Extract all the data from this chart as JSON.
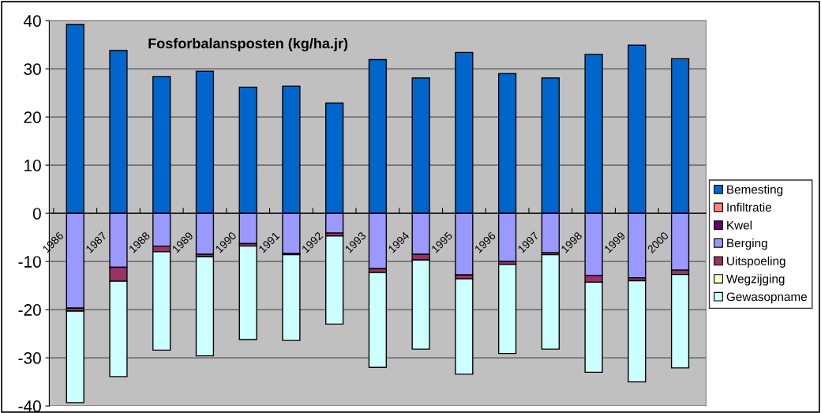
{
  "chart_data": {
    "type": "bar",
    "title": "Fosforbalansposten (kg/ha.jr)",
    "categories": [
      "1986",
      "1987",
      "1988",
      "1989",
      "1990",
      "1991",
      "1992",
      "1993",
      "1994",
      "1995",
      "1996",
      "1997",
      "1998",
      "1999",
      "2000"
    ],
    "stacked": true,
    "series": [
      {
        "name": "Bemesting",
        "color": "#0066cc",
        "values": [
          39.2,
          33.8,
          28.4,
          29.5,
          26.2,
          26.4,
          22.9,
          31.9,
          28.1,
          33.4,
          29.0,
          28.1,
          33.0,
          34.9,
          32.1
        ]
      },
      {
        "name": "Infiltratie",
        "color": "#ff8080",
        "values": [
          null,
          null,
          null,
          null,
          null,
          null,
          null,
          null,
          null,
          null,
          null,
          null,
          null,
          null,
          null
        ]
      },
      {
        "name": "Kwel",
        "color": "#660066",
        "values": [
          null,
          null,
          null,
          null,
          null,
          null,
          null,
          null,
          null,
          null,
          null,
          null,
          null,
          null,
          null
        ]
      },
      {
        "name": "Berging",
        "color": "#9999ff",
        "values": [
          -19.7,
          -11.2,
          -6.8,
          -8.5,
          -6.3,
          -8.3,
          -4.1,
          -11.5,
          -8.5,
          -12.8,
          -10.0,
          -8.2,
          -12.9,
          -13.4,
          -11.8
        ]
      },
      {
        "name": "Uitspoeling",
        "color": "#993366",
        "values": [
          -0.6,
          -2.9,
          -1.2,
          -0.5,
          -0.5,
          -0.3,
          -0.6,
          -0.8,
          -1.2,
          -0.8,
          -0.6,
          -0.4,
          -1.4,
          -0.6,
          -0.9
        ]
      },
      {
        "name": "Wegzijging",
        "color": "#ffffcc",
        "values": [
          null,
          null,
          null,
          null,
          null,
          null,
          null,
          null,
          null,
          null,
          null,
          null,
          null,
          null,
          null
        ]
      },
      {
        "name": "Gewasopname",
        "color": "#ccffff",
        "values": [
          -19.0,
          -19.8,
          -20.4,
          -20.6,
          -19.4,
          -17.8,
          -18.3,
          -19.7,
          -18.5,
          -19.8,
          -18.5,
          -19.6,
          -18.7,
          -21.0,
          -19.4
        ]
      }
    ],
    "ylim": [
      -40,
      40
    ],
    "yticks": [
      -40,
      -30,
      -20,
      -10,
      0,
      10,
      20,
      30,
      40
    ],
    "grid": "y",
    "legend": "right"
  }
}
